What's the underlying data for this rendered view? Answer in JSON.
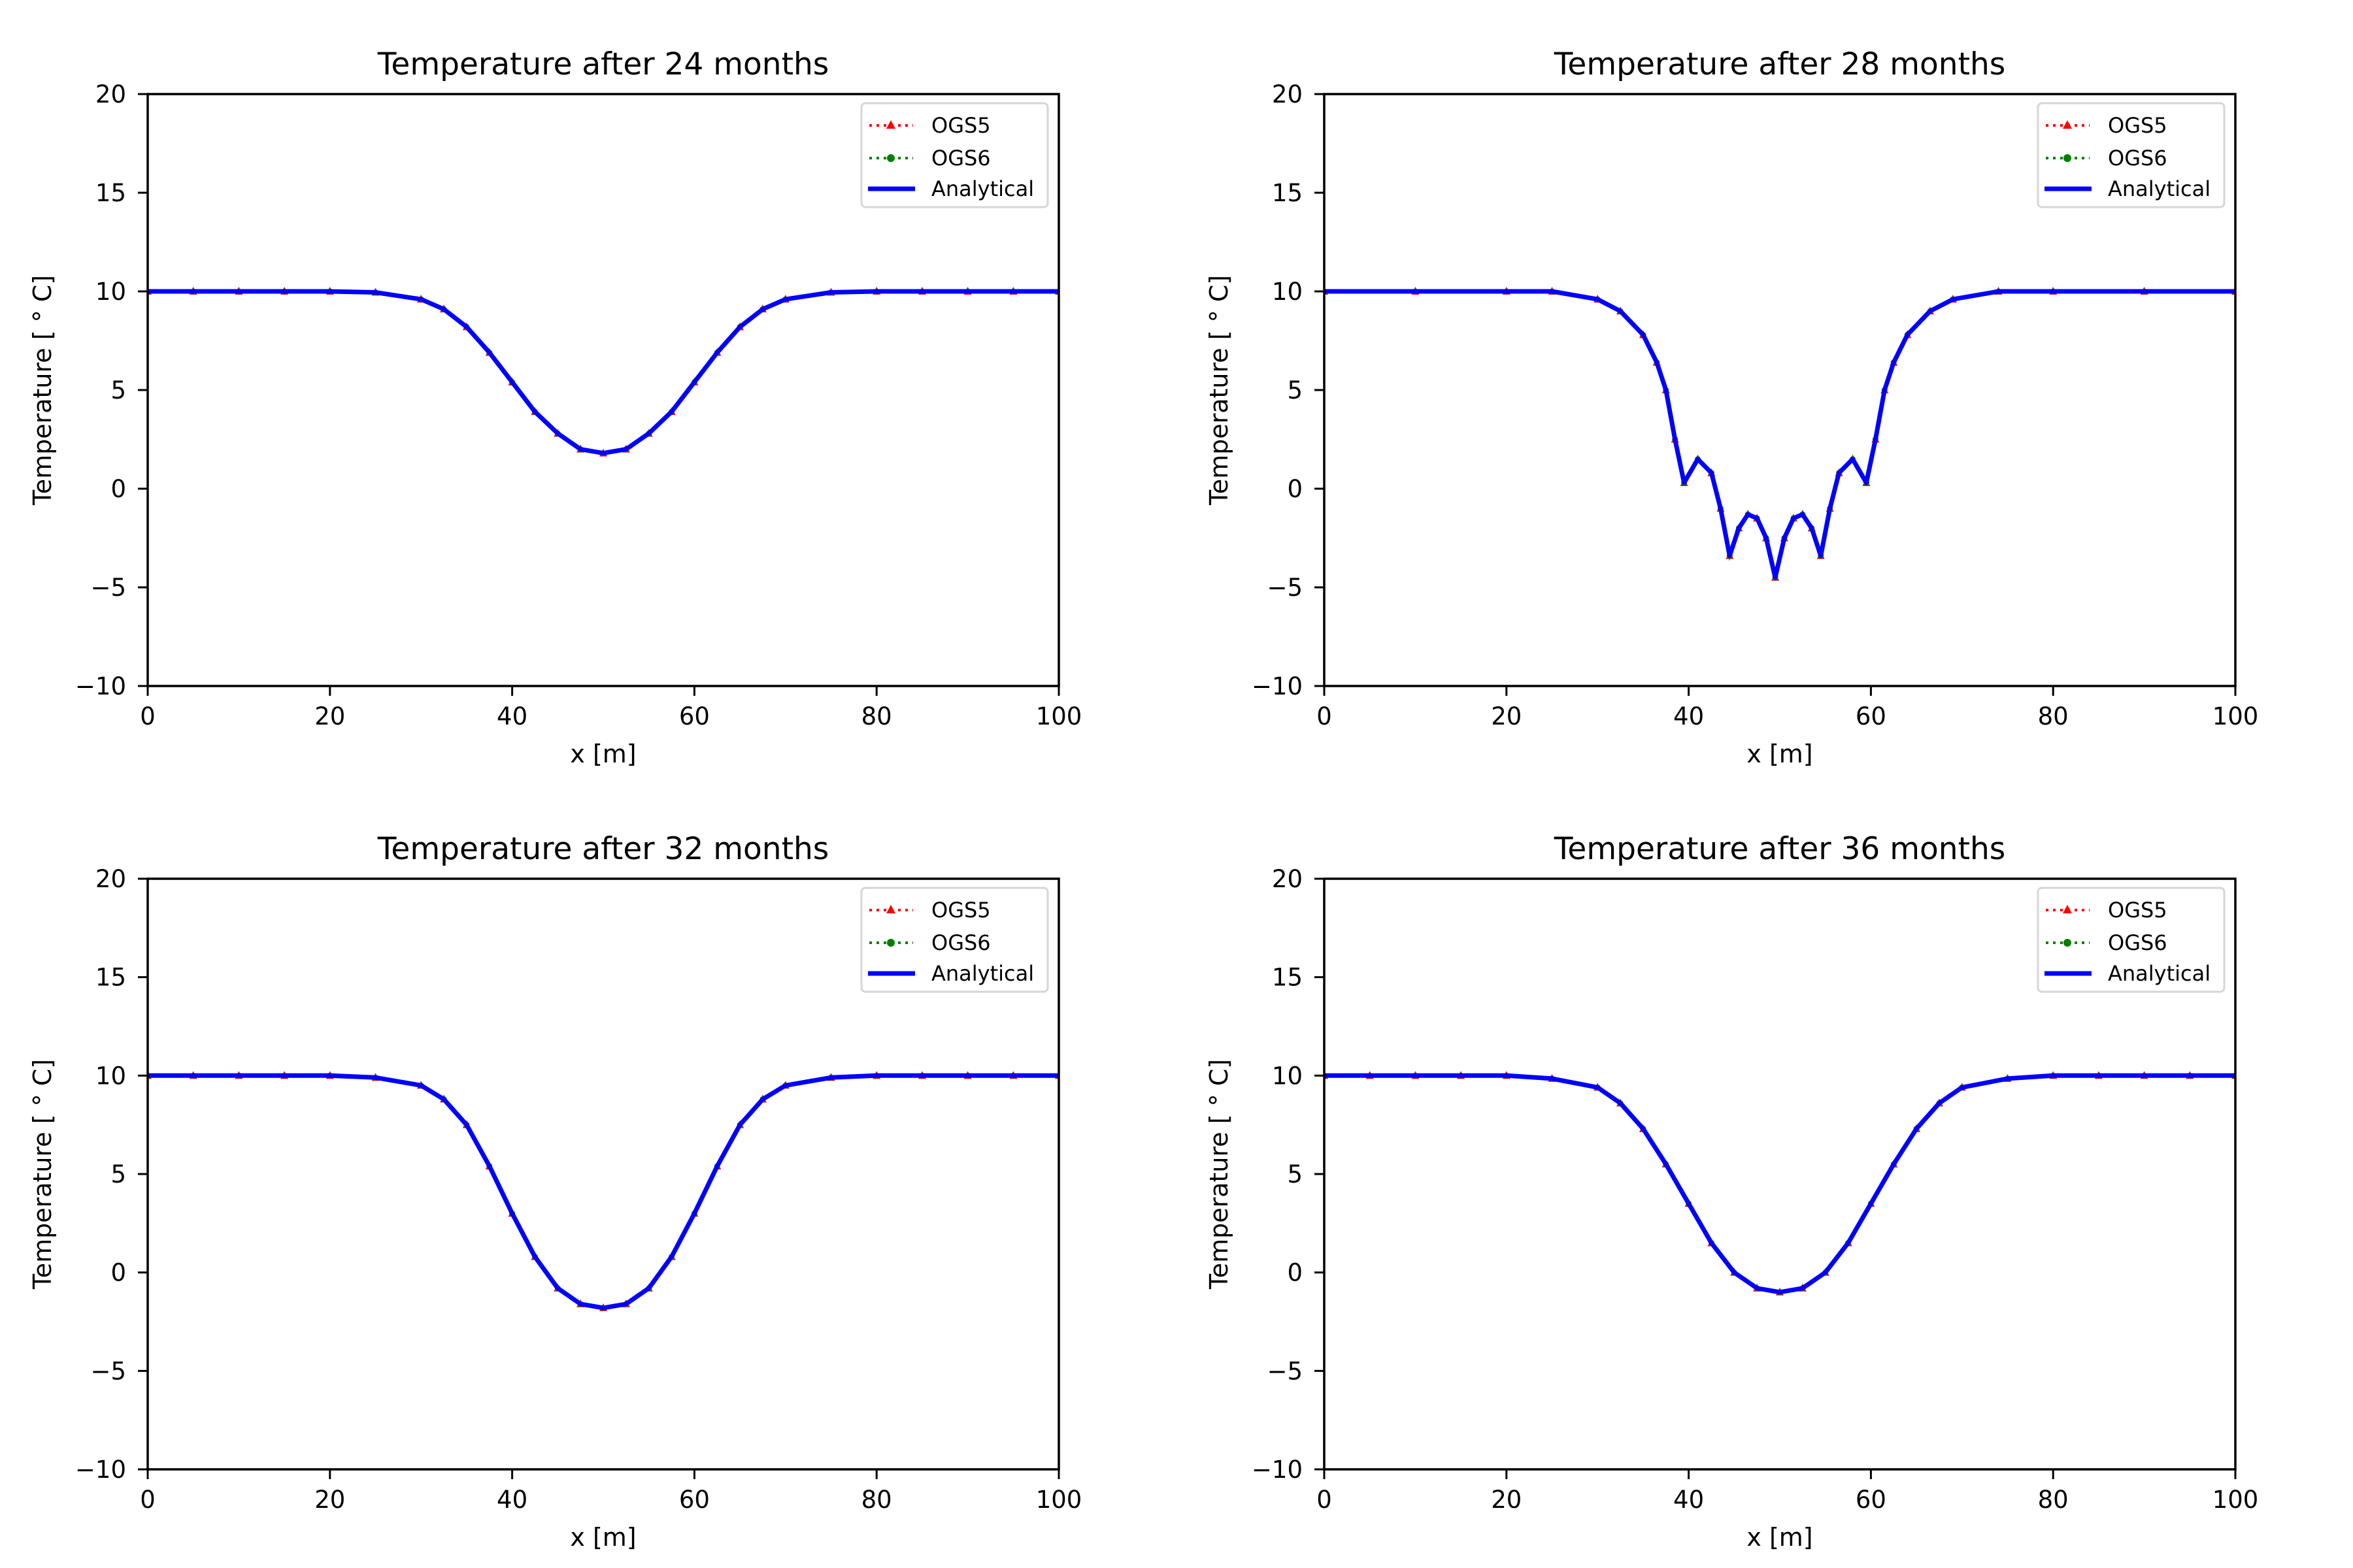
{
  "colors": {
    "OGS5": "#ff0000",
    "OGS6": "#008000",
    "Analytical": "#0000ff",
    "legend_border": "#d6d6d6"
  },
  "chart_data": [
    {
      "type": "line",
      "title": "Temperature after 24 months",
      "xlabel": "x [m]",
      "ylabel": "Temperature [$^\\circ$C]",
      "ylabel_display": "Temperature [ ° C]",
      "xlim": [
        0,
        100
      ],
      "ylim": [
        -10,
        20
      ],
      "xticks": [
        "0",
        "20",
        "40",
        "60",
        "80",
        "100"
      ],
      "yticks": [
        "−10",
        "−5",
        "0",
        "5",
        "10",
        "15",
        "20"
      ],
      "grid": false,
      "legend": "top-right",
      "x": [
        0,
        5,
        10,
        15,
        20,
        25,
        30,
        32.5,
        35,
        37.5,
        40,
        42.5,
        45,
        47.5,
        50,
        52.5,
        55,
        57.5,
        60,
        62.5,
        65,
        67.5,
        70,
        75,
        80,
        85,
        90,
        95,
        100
      ],
      "series": [
        {
          "name": "OGS5",
          "style": "dotted, triangle markers",
          "values": [
            10,
            10,
            10,
            10,
            10,
            9.95,
            9.6,
            9.1,
            8.2,
            6.9,
            5.4,
            3.9,
            2.8,
            2.0,
            1.8,
            2.0,
            2.8,
            3.9,
            5.4,
            6.9,
            8.2,
            9.1,
            9.6,
            9.95,
            10,
            10,
            10,
            10,
            10
          ]
        },
        {
          "name": "OGS6",
          "style": "dotted, dot markers",
          "values": [
            10,
            10,
            10,
            10,
            10,
            9.95,
            9.6,
            9.1,
            8.2,
            6.9,
            5.4,
            3.9,
            2.8,
            2.0,
            1.8,
            2.0,
            2.8,
            3.9,
            5.4,
            6.9,
            8.2,
            9.1,
            9.6,
            9.95,
            10,
            10,
            10,
            10,
            10
          ]
        },
        {
          "name": "Analytical",
          "style": "solid",
          "values": [
            10,
            10,
            10,
            10,
            10,
            9.95,
            9.6,
            9.1,
            8.2,
            6.9,
            5.4,
            3.9,
            2.8,
            2.0,
            1.8,
            2.0,
            2.8,
            3.9,
            5.4,
            6.9,
            8.2,
            9.1,
            9.6,
            9.95,
            10,
            10,
            10,
            10,
            10
          ]
        }
      ]
    },
    {
      "type": "line",
      "title": "Temperature after 28 months",
      "xlabel": "x [m]",
      "ylabel": "Temperature [$^\\circ$C]",
      "ylabel_display": "Temperature [ ° C]",
      "xlim": [
        0,
        100
      ],
      "ylim": [
        -10,
        20
      ],
      "xticks": [
        "0",
        "20",
        "40",
        "60",
        "80",
        "100"
      ],
      "yticks": [
        "−10",
        "−5",
        "0",
        "5",
        "10",
        "15",
        "20"
      ],
      "grid": false,
      "legend": "top-right",
      "x": [
        0,
        10,
        20,
        25,
        30,
        32.5,
        35,
        36.5,
        37.5,
        38.5,
        39.5,
        41,
        42.5,
        43.5,
        44.5,
        45.5,
        46.5,
        47.5,
        48.5,
        49.5,
        50.5,
        51.5,
        52.5,
        53.5,
        54.5,
        55.5,
        56.5,
        58,
        59.5,
        60.5,
        61.5,
        62.5,
        64,
        66.5,
        69,
        74,
        80,
        90,
        100
      ],
      "series": [
        {
          "name": "OGS5",
          "style": "dotted, triangle markers",
          "values": [
            10,
            10,
            10,
            10,
            9.6,
            9.0,
            7.8,
            6.4,
            5.0,
            2.5,
            0.3,
            1.5,
            0.8,
            -1.0,
            -3.4,
            -2.0,
            -1.3,
            -1.5,
            -2.5,
            -4.5,
            -2.5,
            -1.5,
            -1.3,
            -2.0,
            -3.4,
            -1.0,
            0.8,
            1.5,
            0.3,
            2.5,
            5.0,
            6.4,
            7.8,
            9.0,
            9.6,
            10,
            10,
            10,
            10
          ]
        },
        {
          "name": "OGS6",
          "style": "dotted, dot markers",
          "values": [
            10,
            10,
            10,
            10,
            9.6,
            9.0,
            7.8,
            6.4,
            5.0,
            2.5,
            0.3,
            1.5,
            0.8,
            -1.0,
            -3.4,
            -2.0,
            -1.3,
            -1.5,
            -2.5,
            -4.5,
            -2.5,
            -1.5,
            -1.3,
            -2.0,
            -3.4,
            -1.0,
            0.8,
            1.5,
            0.3,
            2.5,
            5.0,
            6.4,
            7.8,
            9.0,
            9.6,
            10,
            10,
            10,
            10
          ]
        },
        {
          "name": "Analytical",
          "style": "solid",
          "values": [
            10,
            10,
            10,
            10,
            9.6,
            9.0,
            7.8,
            6.4,
            5.0,
            2.5,
            0.3,
            1.5,
            0.8,
            -1.0,
            -3.4,
            -2.0,
            -1.3,
            -1.5,
            -2.5,
            -4.5,
            -2.5,
            -1.5,
            -1.3,
            -2.0,
            -3.4,
            -1.0,
            0.8,
            1.5,
            0.3,
            2.5,
            5.0,
            6.4,
            7.8,
            9.0,
            9.6,
            10,
            10,
            10,
            10
          ]
        }
      ]
    },
    {
      "type": "line",
      "title": "Temperature after 32 months",
      "xlabel": "x [m]",
      "ylabel": "Temperature [$^\\circ$C]",
      "ylabel_display": "Temperature [ ° C]",
      "xlim": [
        0,
        100
      ],
      "ylim": [
        -10,
        20
      ],
      "xticks": [
        "0",
        "20",
        "40",
        "60",
        "80",
        "100"
      ],
      "yticks": [
        "−10",
        "−5",
        "0",
        "5",
        "10",
        "15",
        "20"
      ],
      "grid": false,
      "legend": "top-right",
      "x": [
        0,
        5,
        10,
        15,
        20,
        25,
        30,
        32.5,
        35,
        37.5,
        40,
        42.5,
        45,
        47.5,
        50,
        52.5,
        55,
        57.5,
        60,
        62.5,
        65,
        67.5,
        70,
        75,
        80,
        85,
        90,
        95,
        100
      ],
      "series": [
        {
          "name": "OGS5",
          "style": "dotted, triangle markers",
          "values": [
            10,
            10,
            10,
            10,
            10,
            9.9,
            9.5,
            8.8,
            7.5,
            5.4,
            3.0,
            0.8,
            -0.8,
            -1.6,
            -1.8,
            -1.6,
            -0.8,
            0.8,
            3.0,
            5.4,
            7.5,
            8.8,
            9.5,
            9.9,
            10,
            10,
            10,
            10,
            10
          ]
        },
        {
          "name": "OGS6",
          "style": "dotted, dot markers",
          "values": [
            10,
            10,
            10,
            10,
            10,
            9.9,
            9.5,
            8.8,
            7.5,
            5.4,
            3.0,
            0.8,
            -0.8,
            -1.6,
            -1.8,
            -1.6,
            -0.8,
            0.8,
            3.0,
            5.4,
            7.5,
            8.8,
            9.5,
            9.9,
            10,
            10,
            10,
            10,
            10
          ]
        },
        {
          "name": "Analytical",
          "style": "solid",
          "values": [
            10,
            10,
            10,
            10,
            10,
            9.9,
            9.5,
            8.8,
            7.5,
            5.4,
            3.0,
            0.8,
            -0.8,
            -1.6,
            -1.8,
            -1.6,
            -0.8,
            0.8,
            3.0,
            5.4,
            7.5,
            8.8,
            9.5,
            9.9,
            10,
            10,
            10,
            10,
            10
          ]
        }
      ]
    },
    {
      "type": "line",
      "title": "Temperature after 36 months",
      "xlabel": "x [m]",
      "ylabel": "Temperature [$^\\circ$C]",
      "ylabel_display": "Temperature [ ° C]",
      "xlim": [
        0,
        100
      ],
      "ylim": [
        -10,
        20
      ],
      "xticks": [
        "0",
        "20",
        "40",
        "60",
        "80",
        "100"
      ],
      "yticks": [
        "−10",
        "−5",
        "0",
        "5",
        "10",
        "15",
        "20"
      ],
      "grid": false,
      "legend": "top-right",
      "x": [
        0,
        5,
        10,
        15,
        20,
        25,
        30,
        32.5,
        35,
        37.5,
        40,
        42.5,
        45,
        47.5,
        50,
        52.5,
        55,
        57.5,
        60,
        62.5,
        65,
        67.5,
        70,
        75,
        80,
        85,
        90,
        95,
        100
      ],
      "series": [
        {
          "name": "OGS5",
          "style": "dotted, triangle markers",
          "values": [
            10,
            10,
            10,
            10,
            10,
            9.85,
            9.4,
            8.6,
            7.3,
            5.5,
            3.5,
            1.5,
            0.0,
            -0.8,
            -1.0,
            -0.8,
            0.0,
            1.5,
            3.5,
            5.5,
            7.3,
            8.6,
            9.4,
            9.85,
            10,
            10,
            10,
            10,
            10
          ]
        },
        {
          "name": "OGS6",
          "style": "dotted, dot markers",
          "values": [
            10,
            10,
            10,
            10,
            10,
            9.85,
            9.4,
            8.6,
            7.3,
            5.5,
            3.5,
            1.5,
            0.0,
            -0.8,
            -1.0,
            -0.8,
            0.0,
            1.5,
            3.5,
            5.5,
            7.3,
            8.6,
            9.4,
            9.85,
            10,
            10,
            10,
            10,
            10
          ]
        },
        {
          "name": "Analytical",
          "style": "solid",
          "values": [
            10,
            10,
            10,
            10,
            10,
            9.85,
            9.4,
            8.6,
            7.3,
            5.5,
            3.5,
            1.5,
            0.0,
            -0.8,
            -1.0,
            -0.8,
            0.0,
            1.5,
            3.5,
            5.5,
            7.3,
            8.6,
            9.4,
            9.85,
            10,
            10,
            10,
            10,
            10
          ]
        }
      ]
    }
  ]
}
